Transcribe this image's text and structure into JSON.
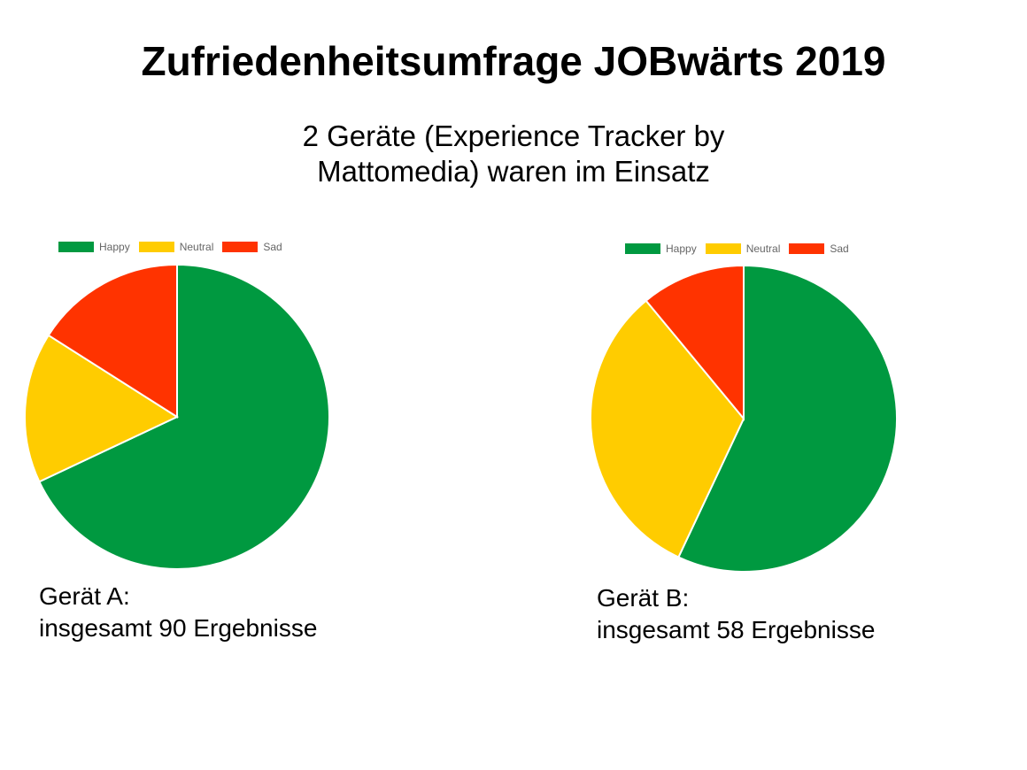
{
  "page": {
    "title": "Zufriedenheitsumfrage JOBwärts 2019",
    "subtitle_line1": "2 Geräte (Experience Tracker by",
    "subtitle_line2": "Mattomedia) waren im Einsatz"
  },
  "chart_data": [
    {
      "type": "pie",
      "categories": [
        "Happy",
        "Neutral",
        "Sad"
      ],
      "values": [
        68,
        16,
        16
      ],
      "colors": [
        "#009940",
        "#ffcc00",
        "#ff3300"
      ],
      "legend_position": "top-left",
      "caption_line1": "Gerät A:",
      "caption_line2": "insgesamt 90 Ergebnisse"
    },
    {
      "type": "pie",
      "categories": [
        "Happy",
        "Neutral",
        "Sad"
      ],
      "values": [
        57,
        32,
        11
      ],
      "colors": [
        "#009940",
        "#ffcc00",
        "#ff3300"
      ],
      "legend_position": "top-left",
      "caption_line1": "Gerät B:",
      "caption_line2": "insgesamt 58 Ergebnisse"
    }
  ]
}
